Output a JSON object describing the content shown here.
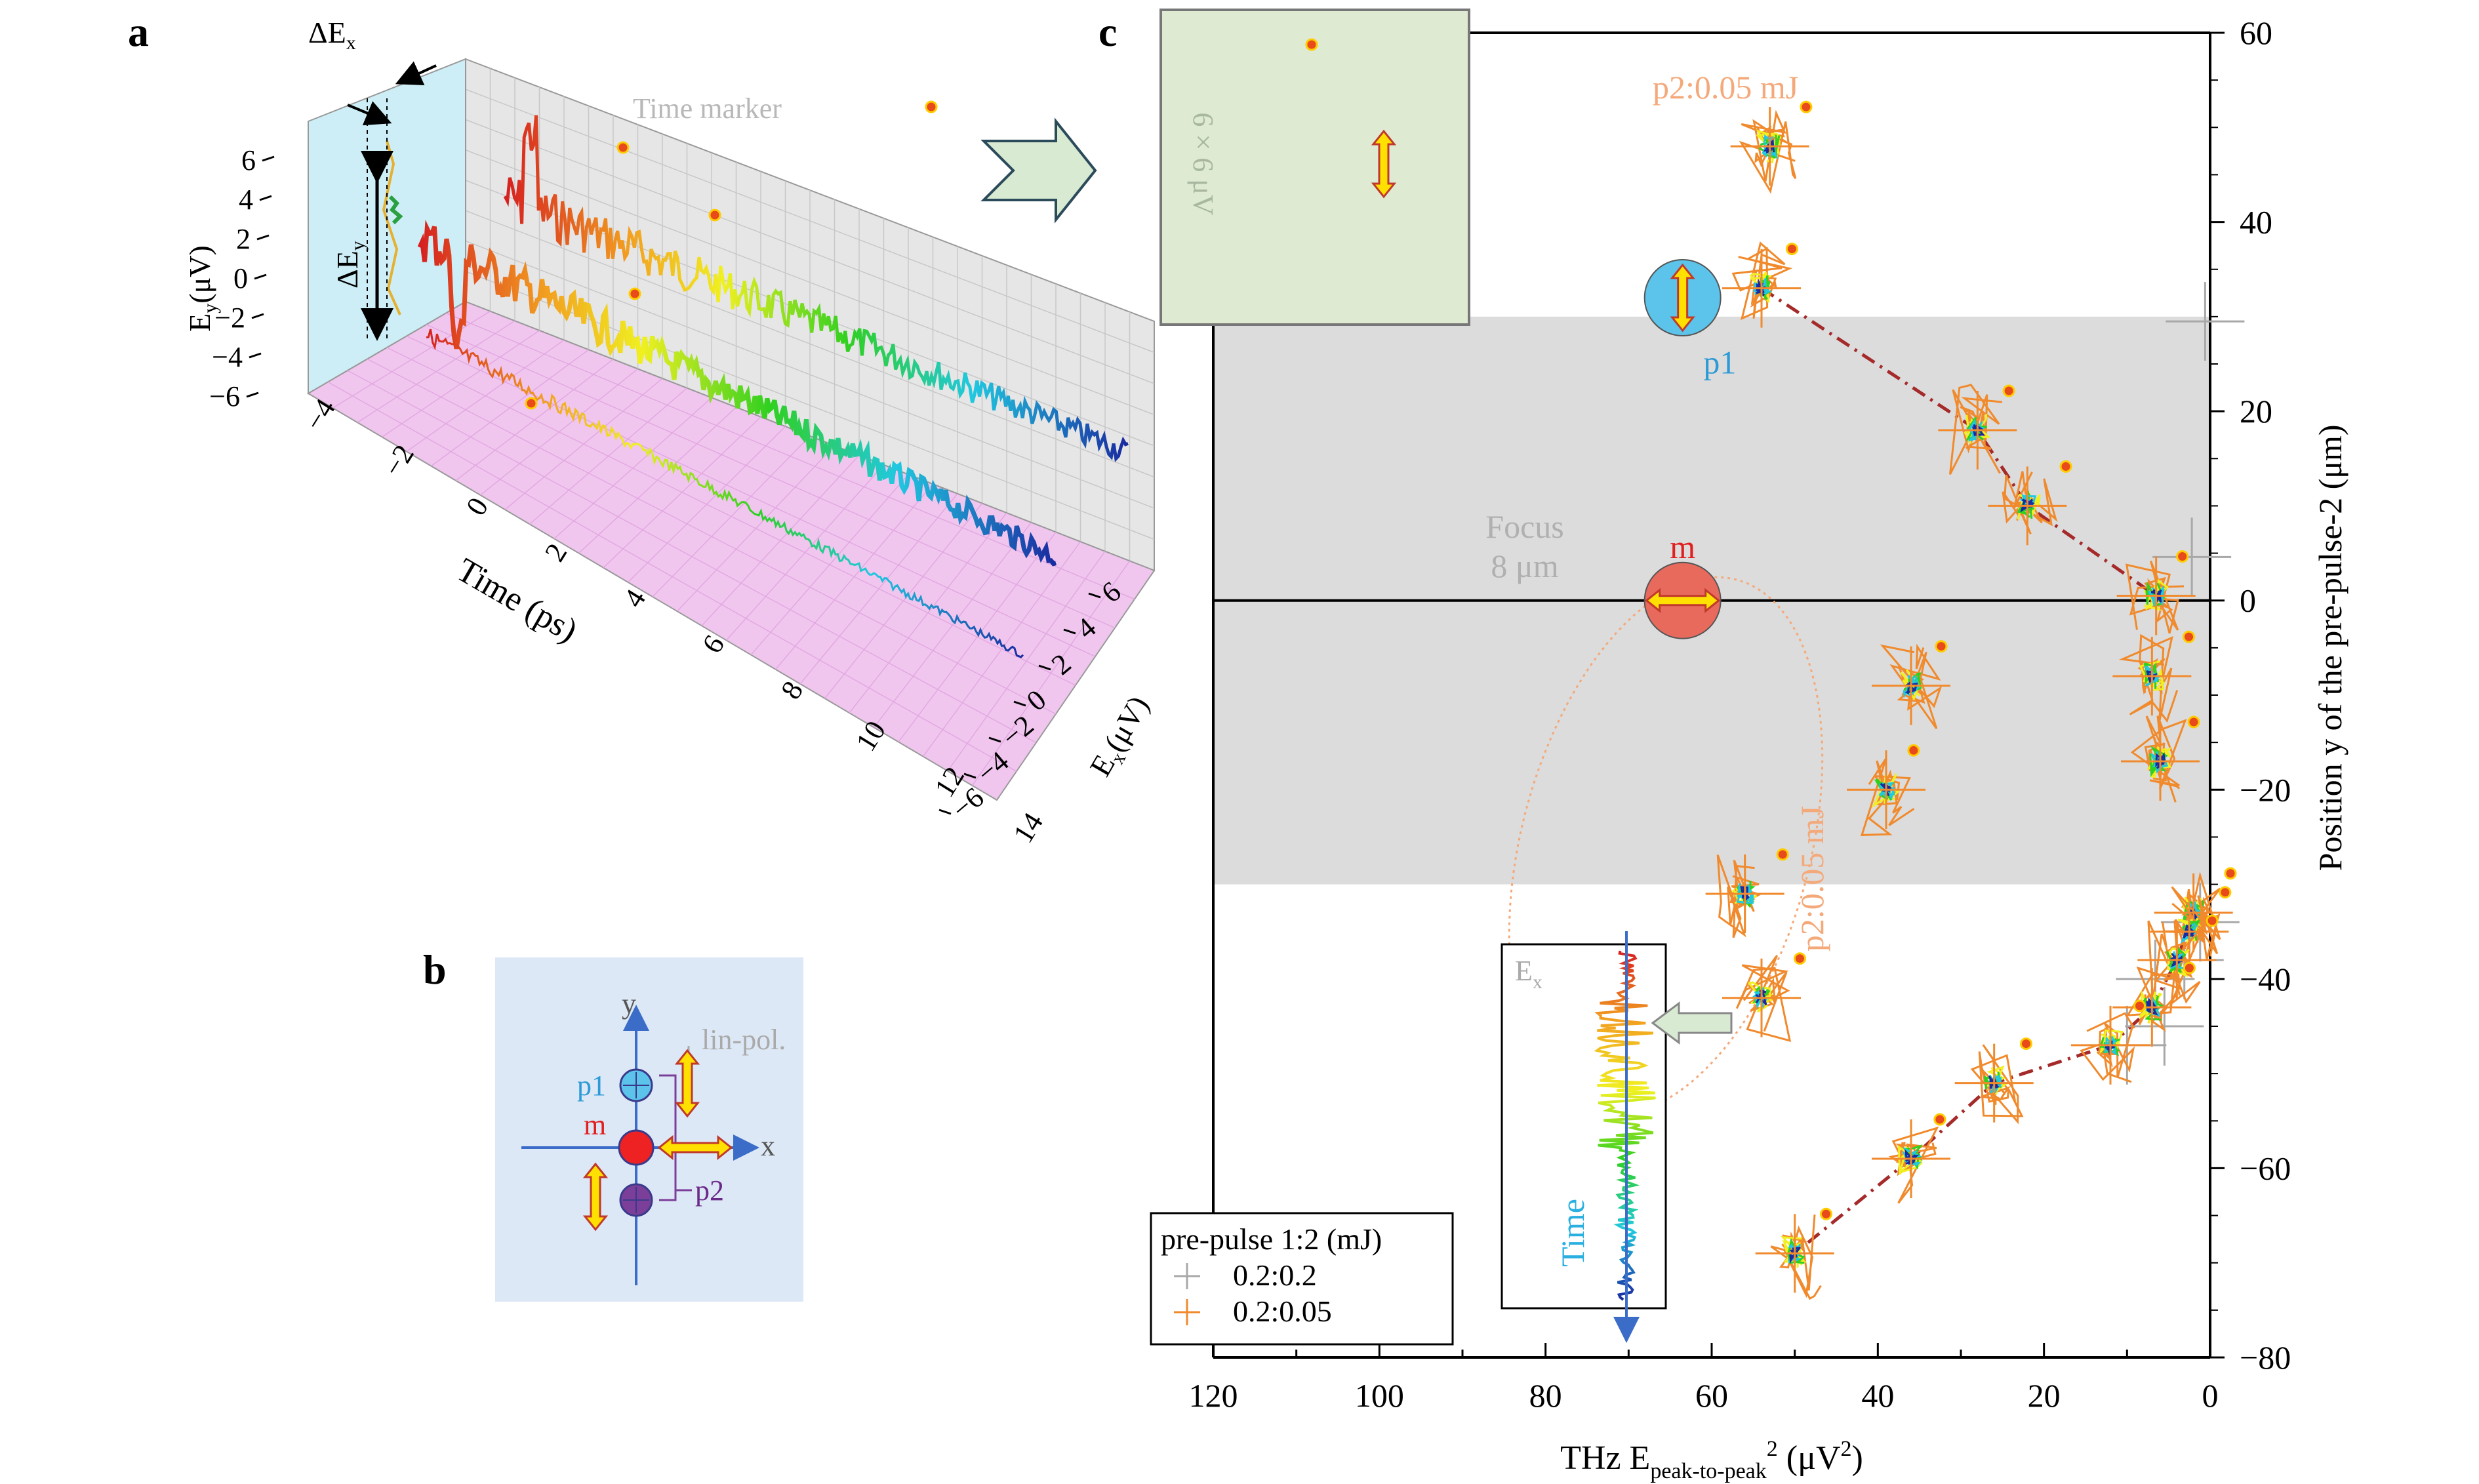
{
  "panels": {
    "a": "a",
    "b": "b",
    "c": "c"
  },
  "panel_a": {
    "ey_label": "E",
    "ey_sub": "y",
    "ey_unit": "(μV)",
    "ex_label": "E",
    "ex_sub": "x",
    "ex_unit": "(μV)",
    "time_label": "Time (ps)",
    "delta_ex": "ΔE",
    "delta_ex_sub": "x",
    "delta_ey": "ΔE",
    "delta_ey_sub": "y",
    "time_marker": "Time marker",
    "ey_ticks": [
      "6",
      "4",
      "2",
      "0",
      "−2",
      "−4",
      "−6"
    ],
    "time_ticks": [
      "−4",
      "−2",
      "0",
      "2",
      "4",
      "6",
      "8",
      "10",
      "12",
      "14"
    ],
    "ex_ticks": [
      "6",
      "4",
      "2",
      "0",
      "−2",
      "−4",
      "−6"
    ]
  },
  "panel_b": {
    "y_axis": "y",
    "x_axis": "x",
    "p1": "p1",
    "m": "m",
    "p2": "p2",
    "lin_pol": "lin-pol."
  },
  "chart_data": {
    "type": "scatter",
    "xlabel_main": "THz E",
    "xlabel_sub": "peak-to-peak",
    "xlabel_sup": "2",
    "xlabel_unit": "(μV",
    "xlabel_unit_sup": "2",
    "xlabel_unit_end": ")",
    "ylabel": "Position y of the pre-pulse-2 (μm)",
    "xlim": [
      120,
      0
    ],
    "ylim": [
      -80,
      60
    ],
    "x_ticks": [
      120,
      100,
      80,
      60,
      40,
      20,
      0
    ],
    "y_ticks": [
      60,
      40,
      20,
      0,
      -20,
      -40,
      -60,
      -80
    ],
    "focus_band": [
      -30,
      30
    ],
    "focus_text": [
      "Focus",
      "8 μm"
    ],
    "inset_text": "6 × 6 μV",
    "p2_label_top": "p2:0.05 mJ",
    "p2_label_rot": "p2:0.05 mJ",
    "m_label": "m",
    "p1_label": "p1",
    "trace_ex": "E",
    "trace_ex_sub": "x",
    "trace_time": "Time",
    "legend_title": "pre-pulse 1:2 (mJ)",
    "series": [
      {
        "name": "0.2:0.2",
        "color": "#a8a8a8",
        "points": [
          [
            0.6,
            29.5
          ],
          [
            2.2,
            4.6
          ],
          [
            1.2,
            -34
          ],
          [
            3.1,
            -38
          ],
          [
            6.6,
            -40
          ],
          [
            10,
            -47
          ],
          [
            5.5,
            -45
          ]
        ]
      },
      {
        "name": "0.2:0.05",
        "color": "#f08a2c",
        "points": [
          [
            53,
            48
          ],
          [
            54,
            33
          ],
          [
            28,
            18
          ],
          [
            22,
            10
          ],
          [
            6.5,
            0.5
          ],
          [
            7,
            -8
          ],
          [
            6,
            -17
          ],
          [
            2,
            -33
          ],
          [
            2.5,
            -35
          ],
          [
            4,
            -38
          ],
          [
            7,
            -43
          ],
          [
            12,
            -47
          ],
          [
            26,
            -51
          ],
          [
            36,
            -59
          ],
          [
            50,
            -69
          ],
          [
            56,
            -31
          ],
          [
            54,
            -42
          ],
          [
            36,
            -9
          ],
          [
            39,
            -20
          ]
        ]
      }
    ],
    "trend_upper": [
      [
        54,
        33
      ],
      [
        28,
        18
      ],
      [
        22,
        10
      ],
      [
        6.5,
        0.5
      ]
    ],
    "trend_lower": [
      [
        2,
        -33
      ],
      [
        4,
        -38
      ],
      [
        7,
        -43
      ],
      [
        12,
        -47
      ],
      [
        26,
        -51
      ],
      [
        36,
        -59
      ],
      [
        50,
        -69
      ]
    ],
    "colors": {
      "focus_band": "#dcdcdc",
      "inset_bg": "#dfead3",
      "arrow_fill": "#ffe000",
      "arrow_stroke": "#c0392b",
      "p1_fill": "#5cc3ea",
      "m_fill": "#e86a5d",
      "p2_fill": "#7b3f99",
      "trend": "#a52a2a",
      "accent_orange": "#f4a97a"
    }
  }
}
